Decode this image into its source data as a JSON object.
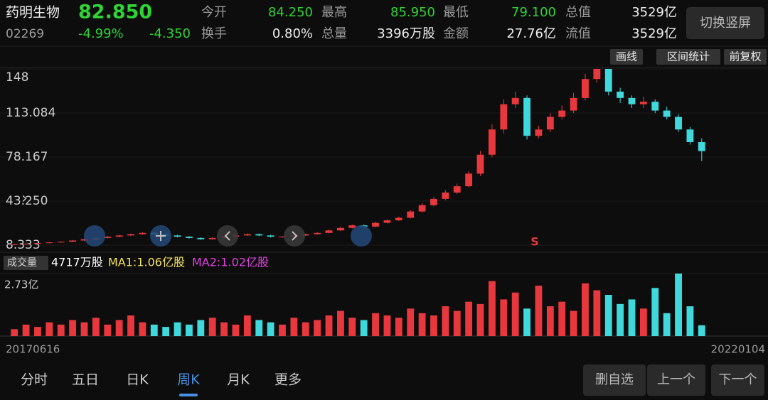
{
  "header": {
    "name": "药明生物",
    "price": "82.850",
    "code": "02269",
    "change_pct": "-4.99%",
    "change": "-4.350",
    "stats": [
      {
        "label": "今开",
        "value": "84.250"
      },
      {
        "label": "最高",
        "value": "85.950"
      },
      {
        "label": "最低",
        "value": "79.100"
      },
      {
        "label": "总值",
        "value": "3529亿"
      },
      {
        "label": "换手",
        "value": "0.80%"
      },
      {
        "label": "总量",
        "value": "3396万股"
      },
      {
        "label": "金额",
        "value": "27.76亿"
      },
      {
        "label": "流值",
        "value": "3529亿"
      }
    ],
    "button": "切换竖屏"
  },
  "toolbar": [
    "画线",
    "区间统计",
    "前复权"
  ],
  "volume_legend": {
    "label": "成交量",
    "value": "4717万股",
    "ma1": "MA1:1.06亿股",
    "ma2": "MA2:1.02亿股"
  },
  "tabs": [
    "分时",
    "五日",
    "日K",
    "周K",
    "月K",
    "更多"
  ],
  "active_tab": 3,
  "buttons": [
    "删自选",
    "上一个",
    "下一个"
  ],
  "chart_data": {
    "type": "candlestick",
    "open": [
      8.5,
      9,
      9.5,
      10,
      10.5,
      11,
      12,
      13,
      14,
      15,
      16,
      17,
      18,
      17,
      16,
      15,
      14,
      13,
      14,
      15,
      16,
      17,
      16,
      15,
      15,
      16,
      17,
      18,
      20,
      22,
      24,
      23,
      26,
      28,
      30,
      35,
      40,
      45,
      50,
      55,
      65,
      80,
      100,
      120,
      125,
      95,
      100,
      110,
      115,
      125,
      140,
      148,
      130,
      125,
      120,
      122,
      115,
      110,
      100,
      90
    ],
    "high": [
      9.3,
      9.8,
      10.3,
      10.8,
      11.4,
      12.4,
      13.4,
      14.4,
      15.5,
      16.5,
      17.5,
      18.6,
      18.5,
      17.5,
      16.5,
      15.5,
      14.5,
      14.5,
      15.5,
      16.5,
      17.5,
      17.5,
      16.5,
      15.6,
      16.5,
      17.5,
      18.6,
      20.6,
      22.7,
      24.7,
      24.8,
      26.8,
      28.9,
      31,
      36,
      41.5,
      46.5,
      52,
      57,
      67,
      83,
      104,
      124,
      130,
      127,
      103,
      113,
      119,
      129,
      144,
      148,
      148,
      133,
      127,
      126,
      124,
      118,
      112,
      102,
      93
    ],
    "low": [
      8.4,
      8.7,
      9.2,
      9.7,
      10.2,
      10.7,
      11.6,
      12.6,
      13.6,
      14.5,
      15.5,
      16.5,
      16.5,
      15.5,
      14.5,
      13.5,
      12.5,
      12.6,
      13.6,
      14.6,
      15.6,
      15.5,
      14.5,
      14.4,
      14.6,
      15.6,
      16.6,
      17.6,
      19.5,
      21.5,
      22.3,
      22.5,
      25.5,
      27.5,
      29.5,
      34,
      39,
      44,
      49,
      54,
      63,
      78,
      97,
      117,
      92,
      93,
      98,
      108,
      113,
      123,
      137,
      127,
      121,
      117,
      117,
      113,
      108,
      98,
      88,
      75
    ],
    "close": [
      9,
      9.5,
      10,
      10.5,
      11,
      12,
      13,
      14,
      15,
      16,
      17,
      18,
      17,
      16,
      15,
      14,
      13,
      14,
      15,
      16,
      17,
      16,
      15,
      15,
      16,
      17,
      18,
      20,
      22,
      24,
      23,
      26,
      28,
      30,
      35,
      40,
      45,
      50,
      55,
      65,
      80,
      100,
      120,
      125,
      95,
      100,
      110,
      115,
      125,
      140,
      148,
      130,
      125,
      120,
      122,
      115,
      110,
      100,
      90,
      82.85
    ],
    "volume": [
      0.3,
      0.5,
      0.4,
      0.6,
      0.5,
      0.7,
      0.6,
      0.8,
      0.5,
      0.7,
      0.9,
      0.6,
      0.5,
      0.4,
      0.6,
      0.5,
      0.7,
      0.8,
      0.6,
      0.5,
      0.9,
      0.7,
      0.6,
      0.5,
      0.8,
      0.6,
      0.7,
      0.9,
      1.1,
      0.8,
      0.7,
      1.0,
      0.9,
      0.8,
      1.2,
      1.0,
      0.9,
      1.3,
      1.1,
      1.5,
      1.4,
      2.4,
      1.6,
      1.9,
      1.2,
      2.2,
      1.3,
      1.5,
      1.1,
      2.3,
      2.0,
      1.8,
      1.4,
      1.6,
      1.2,
      2.1,
      1.0,
      2.73,
      1.3,
      0.47
    ],
    "ylim": [
      8.333,
      148
    ],
    "yticks": [
      148,
      113.084,
      78.167,
      {
        "value": 43.25,
        "label": "43.250"
      },
      8.333
    ],
    "volume_ylim": [
      0,
      2.73
    ],
    "volume_yticks": [
      {
        "value": 2.73,
        "label": "2.73亿"
      }
    ],
    "up_color": "#e8383d",
    "down_color": "#3fd8dc",
    "date_labels": [
      "20170616",
      "20220104"
    ],
    "annotation": "S"
  }
}
